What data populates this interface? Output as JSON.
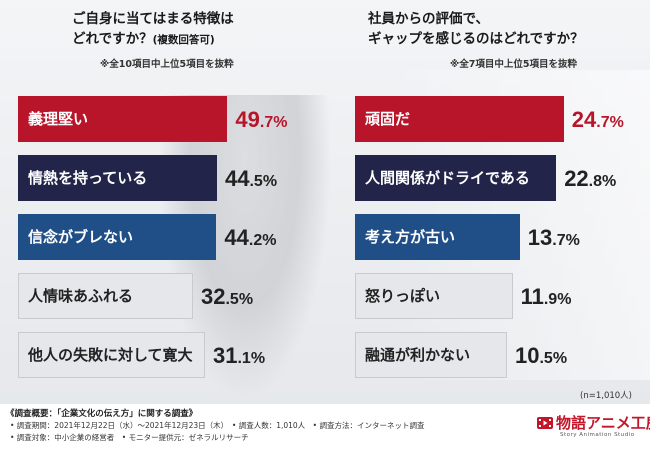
{
  "colors": {
    "red": "#b8152b",
    "navy": "#23244a",
    "blue": "#1f4f86",
    "gray": "#e6e7ea",
    "gray_border": "#c9cacd",
    "white_text": "#ffffff",
    "dark_text": "#222222"
  },
  "left": {
    "title_line1": "ご自身に当てはまる特徴は",
    "title_line2_main": "どれですか？",
    "title_line2_small": "(複数回答可)",
    "note": "※全10項目中上位5項目を抜粋"
  },
  "right": {
    "title_line1": "社員からの評価で、",
    "title_line2": "ギャップを感じるのはどれですか？",
    "note": "※全7項目中上位5項目を抜粋"
  },
  "n_note": "(n=1,010人)",
  "chart_data": [
    {
      "type": "bar",
      "orientation": "horizontal",
      "title": "ご自身に当てはまる特徴はどれですか？(複数回答可)",
      "unit": "%",
      "categories": [
        "義理堅い",
        "情熱を持っている",
        "信念がブレない",
        "人情味あふれる",
        "他人の失敗に対して寛大"
      ],
      "values": [
        49.7,
        44.5,
        44.2,
        32.5,
        31.1
      ],
      "value_labels": [
        {
          "int": "49",
          "dec": ".7%"
        },
        {
          "int": "44",
          "dec": ".5%"
        },
        {
          "int": "44",
          "dec": ".2%"
        },
        {
          "int": "32",
          "dec": ".5%"
        },
        {
          "int": "31",
          "dec": ".1%"
        }
      ],
      "bar_styles": [
        "red",
        "navy",
        "blue",
        "gray",
        "gray"
      ],
      "xlim": [
        0,
        50
      ]
    },
    {
      "type": "bar",
      "orientation": "horizontal",
      "title": "社員からの評価で、ギャップを感じるのはどれですか？",
      "unit": "%",
      "categories": [
        "頑固だ",
        "人間関係がドライである",
        "考え方が古い",
        "怒りっぽい",
        "融通が利かない"
      ],
      "values": [
        24.7,
        22.8,
        13.7,
        11.9,
        10.5
      ],
      "value_labels": [
        {
          "int": "24",
          "dec": ".7%"
        },
        {
          "int": "22",
          "dec": ".8%"
        },
        {
          "int": "13",
          "dec": ".7%"
        },
        {
          "int": "11",
          "dec": ".9%"
        },
        {
          "int": "10",
          "dec": ".5%"
        }
      ],
      "bar_styles": [
        "red",
        "navy",
        "blue",
        "gray",
        "gray"
      ],
      "xlim": [
        0,
        25
      ]
    }
  ],
  "footer": {
    "title": "《調査概要：「企業文化の伝え方」に関する調査》",
    "line1": "• 調査期間：2021年12月22日（水）～2021年12月23日（木）　• 調査人数：1,010人　• 調査方法：インターネット調査",
    "line2": "• 調査対象：中小企業の経営者　• モニター提供元：ゼネラルリサーチ"
  },
  "logo": {
    "text": "物語アニメ工房",
    "sub": "Story Animation Studio"
  }
}
